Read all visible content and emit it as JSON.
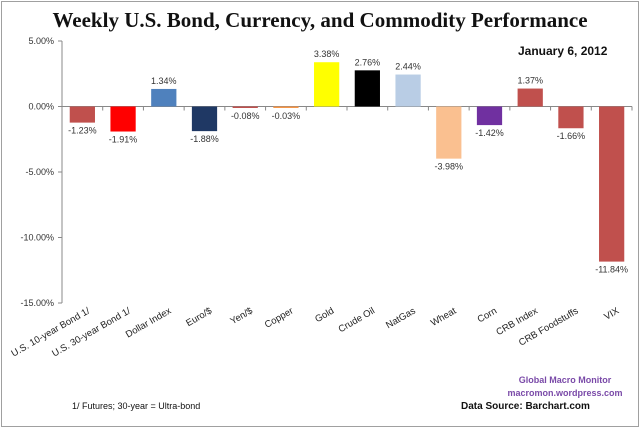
{
  "chart_data": {
    "type": "bar",
    "title": "Weekly U.S. Bond, Currency, and Commodity Performance",
    "subtitle": "January 6, 2012",
    "xlabel": "",
    "ylabel": "",
    "ylim": [
      -15,
      5
    ],
    "yticks": [
      5,
      0,
      -5,
      -10,
      -15
    ],
    "ytick_labels": [
      "5.00%",
      "0.00%",
      "-5.00%",
      "-10.00%",
      "-15.00%"
    ],
    "grid": false,
    "categories": [
      "U.S. 10-year Bond 1/",
      "U.S. 30-year Bond 1/",
      "Dollar Index",
      "Euro/$",
      "Yen/$",
      "Copper",
      "Gold",
      "Crude Oil",
      "NatGas",
      "Wheat",
      "Corn",
      "CRB Index",
      "CRB Foodstuffs",
      "VIX"
    ],
    "values": [
      -1.23,
      -1.91,
      1.34,
      -1.88,
      -0.08,
      -0.03,
      3.38,
      2.76,
      2.44,
      -3.98,
      -1.42,
      1.37,
      -1.66,
      -11.84
    ],
    "value_labels": [
      "-1.23%",
      "-1.91%",
      "1.34%",
      "-1.88%",
      "-0.08%",
      "-0.03%",
      "3.38%",
      "2.76%",
      "2.44%",
      "-3.98%",
      "-1.42%",
      "1.37%",
      "-1.66%",
      "-11.84%"
    ],
    "colors": [
      "#c0504d",
      "#ff0000",
      "#4f81bd",
      "#1f3864",
      "#c0504d",
      "#f79646",
      "#ffff00",
      "#000000",
      "#b9cde5",
      "#fac090",
      "#7030a0",
      "#c0504d",
      "#c0504d",
      "#c0504d"
    ]
  },
  "footnote": "1/ Futures; 30-year = Ultra-bond",
  "branding": {
    "name": "Global  Macro  Monitor",
    "site": "macromon.wordpress.com"
  },
  "source": "Data Source:  Barchart.com"
}
